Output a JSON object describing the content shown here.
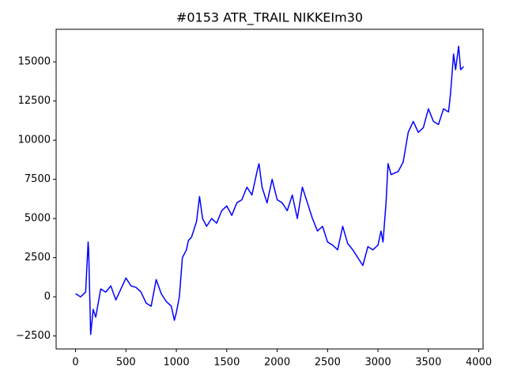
{
  "chart_data": {
    "type": "line",
    "title": "#0153 ATR_TRAIL NIKKEIm30",
    "x": [
      0,
      50,
      100,
      125,
      130,
      150,
      175,
      200,
      250,
      300,
      350,
      400,
      450,
      500,
      550,
      600,
      650,
      700,
      750,
      800,
      850,
      900,
      950,
      980,
      1000,
      1030,
      1060,
      1100,
      1120,
      1150,
      1200,
      1230,
      1260,
      1300,
      1350,
      1400,
      1450,
      1500,
      1550,
      1600,
      1650,
      1700,
      1750,
      1800,
      1820,
      1850,
      1900,
      1950,
      2000,
      2050,
      2100,
      2150,
      2200,
      2250,
      2300,
      2350,
      2400,
      2450,
      2500,
      2550,
      2600,
      2650,
      2700,
      2750,
      2800,
      2850,
      2900,
      2950,
      3000,
      3030,
      3050,
      3080,
      3100,
      3130,
      3200,
      3250,
      3300,
      3350,
      3400,
      3450,
      3500,
      3550,
      3600,
      3650,
      3700,
      3720,
      3750,
      3770,
      3800,
      3820,
      3850
    ],
    "series": [
      {
        "color": "#0000ff",
        "values": [
          200,
          0,
          300,
          3500,
          3000,
          -2400,
          -800,
          -1300,
          500,
          300,
          700,
          -200,
          500,
          1200,
          700,
          600,
          300,
          -400,
          -600,
          1100,
          200,
          -300,
          -600,
          -1500,
          -1000,
          0,
          2500,
          3000,
          3600,
          3800,
          4800,
          6400,
          5000,
          4500,
          5000,
          4700,
          5500,
          5800,
          5200,
          6000,
          6200,
          7000,
          6500,
          8000,
          8500,
          7000,
          6000,
          7500,
          6200,
          6000,
          5500,
          6500,
          5000,
          7000,
          6000,
          5000,
          4200,
          4500,
          3500,
          3300,
          3000,
          4500,
          3400,
          3000,
          2500,
          2000,
          3200,
          3000,
          3300,
          4200,
          3500,
          6000,
          8500,
          7800,
          8000,
          8600,
          10500,
          11200,
          10500,
          10800,
          12000,
          11200,
          11000,
          12000,
          11800,
          13000,
          15500,
          14500,
          16000,
          14500,
          14700
        ]
      }
    ],
    "xlim": [
      -192.5,
      4042.5
    ],
    "ylim": [
      -3330,
      17080
    ],
    "xticks": [
      0,
      500,
      1000,
      1500,
      2000,
      2500,
      3000,
      3500,
      4000
    ],
    "yticks": [
      {
        "value": -2500,
        "label": "−2500"
      },
      0,
      2500,
      5000,
      7500,
      10000,
      12500,
      15000
    ],
    "grid": false
  }
}
